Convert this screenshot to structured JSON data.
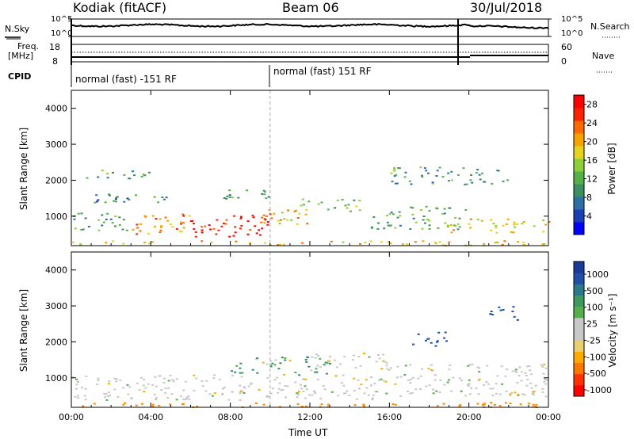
{
  "header": {
    "radar": "Kodiak (fitACF)",
    "beam": "Beam 06",
    "date": "30/Jul/2018"
  },
  "top_panels": {
    "nsky_label": "N.Sky",
    "nsky_ticks": [
      "10^5",
      "10^0"
    ],
    "nsearch_label": "N.Search",
    "nsearch_ticks": [
      "10^5",
      "10^0"
    ],
    "freq_label_1": "Freq.",
    "freq_label_2": "[MHz]",
    "freq_ticks": [
      "18",
      "8"
    ],
    "nave_label": "Nave",
    "nave_ticks": [
      "60",
      "0"
    ],
    "cpid_label": "CPID",
    "cpid_segments": [
      "normal (fast) -151 RF",
      "normal (fast) 151 RF"
    ]
  },
  "colors": {
    "axis": "#000000",
    "power_scale": [
      "#0000ff",
      "#1a3fb5",
      "#2e6fa8",
      "#3d8f5f",
      "#55b04a",
      "#8ccf3a",
      "#e6d21e",
      "#f5a300",
      "#ff6a00",
      "#ff2200",
      "#ff0000"
    ],
    "velocity_scale": [
      "#ff0000",
      "#ff3300",
      "#ff6600",
      "#ff9900",
      "#ffcc00",
      "#e8c980",
      "#c8c8c8",
      "#5bb04a",
      "#2e9e4a",
      "#2a7a6a",
      "#1f4fa8",
      "#1a3a9a"
    ]
  },
  "chart_data": [
    {
      "type": "heatmap",
      "title": "",
      "xlabel": "",
      "ylabel": "Slant Range [km]",
      "x_ticks": [
        "00:00",
        "04:00",
        "08:00",
        "12:00",
        "16:00",
        "20:00",
        "00:00"
      ],
      "xlim_hours": [
        0,
        24
      ],
      "y_ticks": [
        1000,
        2000,
        3000,
        4000
      ],
      "ylim": [
        180,
        4500
      ],
      "colorbar_label": "Power [dB]",
      "colorbar_ticks": [
        "28",
        "24",
        "20",
        "16",
        "12",
        "8",
        "4"
      ],
      "colorbar_range": [
        0,
        30
      ],
      "scatter_regions": [
        {
          "t0": 0.0,
          "t1": 3.0,
          "r0": 600,
          "r1": 1100,
          "level": 10
        },
        {
          "t0": 3.0,
          "t1": 6.0,
          "r0": 500,
          "r1": 1050,
          "level": 22
        },
        {
          "t0": 5.5,
          "t1": 10.0,
          "r0": 450,
          "r1": 1100,
          "level": 28
        },
        {
          "t0": 9.5,
          "t1": 12.0,
          "r0": 700,
          "r1": 1200,
          "level": 20
        },
        {
          "t0": 11.5,
          "t1": 15.0,
          "r0": 1150,
          "r1": 1500,
          "level": 14
        },
        {
          "t0": 15.0,
          "t1": 20.0,
          "r0": 650,
          "r1": 1300,
          "level": 12
        },
        {
          "t0": 19.0,
          "t1": 24.0,
          "r0": 550,
          "r1": 950,
          "level": 18
        },
        {
          "t0": 0.0,
          "t1": 5.0,
          "r0": 1400,
          "r1": 1650,
          "level": 8
        },
        {
          "t0": 0.5,
          "t1": 4.0,
          "r0": 2050,
          "r1": 2300,
          "level": 10
        },
        {
          "t0": 6.5,
          "t1": 10.0,
          "r0": 1500,
          "r1": 1750,
          "level": 10
        },
        {
          "t0": 16.0,
          "t1": 22.0,
          "r0": 1900,
          "r1": 2400,
          "level": 10
        },
        {
          "t0": 0.0,
          "t1": 24.0,
          "r0": 200,
          "r1": 330,
          "level": 20
        }
      ]
    },
    {
      "type": "heatmap",
      "title": "",
      "xlabel": "Time UT",
      "ylabel": "Slant Range [km]",
      "x_ticks": [
        "00:00",
        "04:00",
        "08:00",
        "12:00",
        "16:00",
        "20:00",
        "00:00"
      ],
      "xlim_hours": [
        0,
        24
      ],
      "y_ticks": [
        1000,
        2000,
        3000,
        4000
      ],
      "ylim": [
        180,
        4500
      ],
      "colorbar_label": "Velocity [m s⁻¹]",
      "colorbar_ticks": [
        "1000",
        "500",
        "100",
        "25",
        "-25",
        "-100",
        "-500",
        "-1000"
      ],
      "scatter_regions": [
        {
          "t0": 0.0,
          "t1": 16.0,
          "r0": 400,
          "r1": 1100,
          "vel": 0
        },
        {
          "t0": 8.0,
          "t1": 13.0,
          "r0": 1100,
          "r1": 1600,
          "vel": 150
        },
        {
          "t0": 12.0,
          "t1": 16.0,
          "r0": 1200,
          "r1": 1700,
          "vel": 0
        },
        {
          "t0": 16.0,
          "t1": 24.0,
          "r0": 500,
          "r1": 1400,
          "vel": 0
        },
        {
          "t0": 17.0,
          "t1": 19.0,
          "r0": 1900,
          "r1": 2300,
          "vel": 800
        },
        {
          "t0": 21.0,
          "t1": 22.5,
          "r0": 2600,
          "r1": 3000,
          "vel": 900
        },
        {
          "t0": 0.0,
          "t1": 24.0,
          "r0": 200,
          "r1": 330,
          "vel": -300
        },
        {
          "t0": 22.0,
          "t1": 23.5,
          "r0": 550,
          "r1": 700,
          "vel": -60
        }
      ]
    }
  ]
}
